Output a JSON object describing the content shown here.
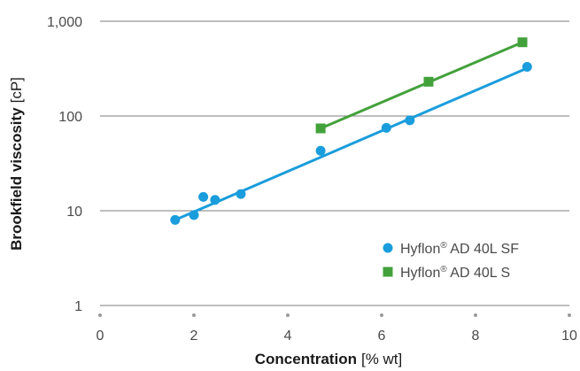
{
  "chart_data": {
    "type": "scatter",
    "x_axis": {
      "title_main": "Concentration",
      "title_unit": "[% wt]",
      "range": [
        0,
        10
      ],
      "ticks": [
        0,
        2,
        4,
        6,
        8,
        10
      ],
      "tick_labels": [
        "0",
        "2",
        "4",
        "6",
        "8",
        "10"
      ]
    },
    "y_axis": {
      "title_main": "Brookfield viscosity",
      "title_unit": "[cP]",
      "scale": "log",
      "range": [
        1,
        1000
      ],
      "ticks": [
        1,
        10,
        100,
        1000
      ],
      "tick_labels": [
        "1",
        "10",
        "100",
        "1,000"
      ]
    },
    "grid": "horizontal",
    "legend_position": "lower-right",
    "series": [
      {
        "name_base": "Hyflon",
        "name_mark": "®",
        "name_rest": " AD 40L SF",
        "marker": "circle",
        "color": "#1a9ddc",
        "points": [
          {
            "x": 1.6,
            "y": 8
          },
          {
            "x": 2.0,
            "y": 9
          },
          {
            "x": 2.2,
            "y": 14
          },
          {
            "x": 2.45,
            "y": 13
          },
          {
            "x": 3.0,
            "y": 15
          },
          {
            "x": 4.7,
            "y": 43
          },
          {
            "x": 6.1,
            "y": 75
          },
          {
            "x": 6.6,
            "y": 90
          },
          {
            "x": 9.1,
            "y": 330
          }
        ],
        "fit_line": {
          "x": [
            1.55,
            9.1
          ],
          "y": [
            7.8,
            320
          ]
        }
      },
      {
        "name_base": "Hyflon",
        "name_mark": "®",
        "name_rest": " AD 40L S",
        "marker": "square",
        "color": "#43a13b",
        "points": [
          {
            "x": 4.7,
            "y": 74
          },
          {
            "x": 7.0,
            "y": 230
          },
          {
            "x": 9.0,
            "y": 600
          }
        ],
        "fit_line": {
          "x": [
            4.7,
            9.0
          ],
          "y": [
            74,
            600
          ]
        }
      }
    ]
  }
}
